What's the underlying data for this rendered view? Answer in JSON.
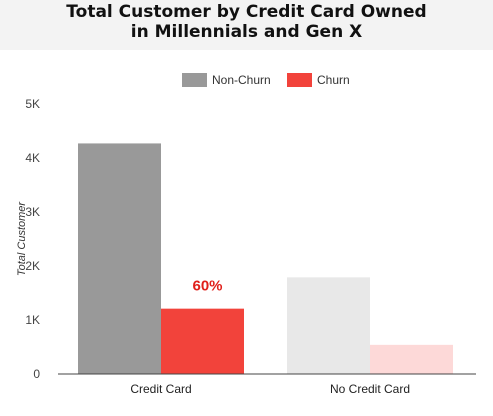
{
  "chart_data": {
    "type": "bar",
    "title_lines": [
      "Total Customer by Credit Card Owned",
      "in Millennials and Gen X"
    ],
    "ylabel": "Total Customer",
    "xlabel": "",
    "ylim": [
      0,
      5000
    ],
    "yticks": [
      0,
      1000,
      2000,
      3000,
      4000,
      5000
    ],
    "ytick_labels": [
      "0",
      "1K",
      "2K",
      "3K",
      "4K",
      "5K"
    ],
    "categories": [
      "Credit Card",
      "No Credit Card"
    ],
    "series": [
      {
        "name": "Non-Churn",
        "values": [
          4270,
          1790
        ],
        "color": "#999999",
        "faded_color": "#e8e8e8"
      },
      {
        "name": "Churn",
        "values": [
          1210,
          540
        ],
        "color": "#f2433b",
        "faded_color": "#fdd9d8"
      }
    ],
    "highlight_category": "Credit Card",
    "annotation": {
      "text": "60%",
      "category": "Credit Card",
      "color": "#e0201b"
    },
    "legend_position": "top-center",
    "grid": false
  }
}
